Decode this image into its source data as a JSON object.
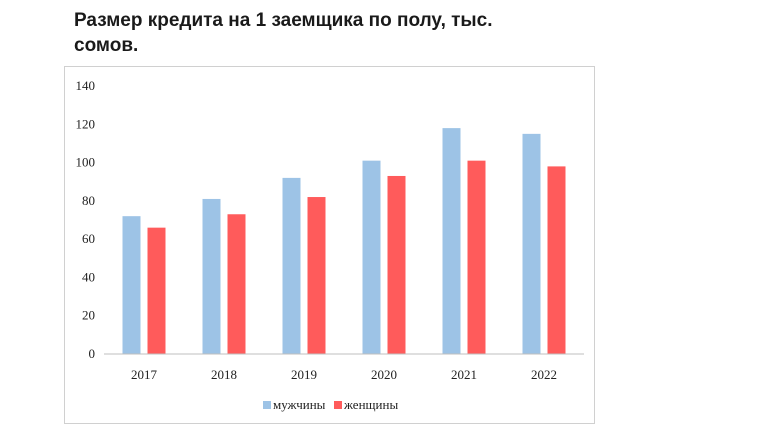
{
  "title": "Размер кредита на 1 заемщика по полу, тыс. сомов.",
  "chart_data": {
    "type": "bar",
    "title": "Размер кредита на 1 заемщика по полу, тыс. сомов.",
    "xlabel": "",
    "ylabel": "",
    "categories": [
      "2017",
      "2018",
      "2019",
      "2020",
      "2021",
      "2022"
    ],
    "series": [
      {
        "name": "мужчины",
        "color": "#9dc3e6",
        "values": [
          72,
          81,
          92,
          101,
          118,
          115
        ]
      },
      {
        "name": "женщины",
        "color": "#ff5b5b",
        "values": [
          66,
          73,
          82,
          93,
          101,
          98
        ]
      }
    ],
    "ylim": [
      0,
      140
    ],
    "yticks": [
      "0",
      "20",
      "40",
      "60",
      "80",
      "100",
      "120",
      "140"
    ],
    "grid": false,
    "legend_position": "bottom"
  }
}
